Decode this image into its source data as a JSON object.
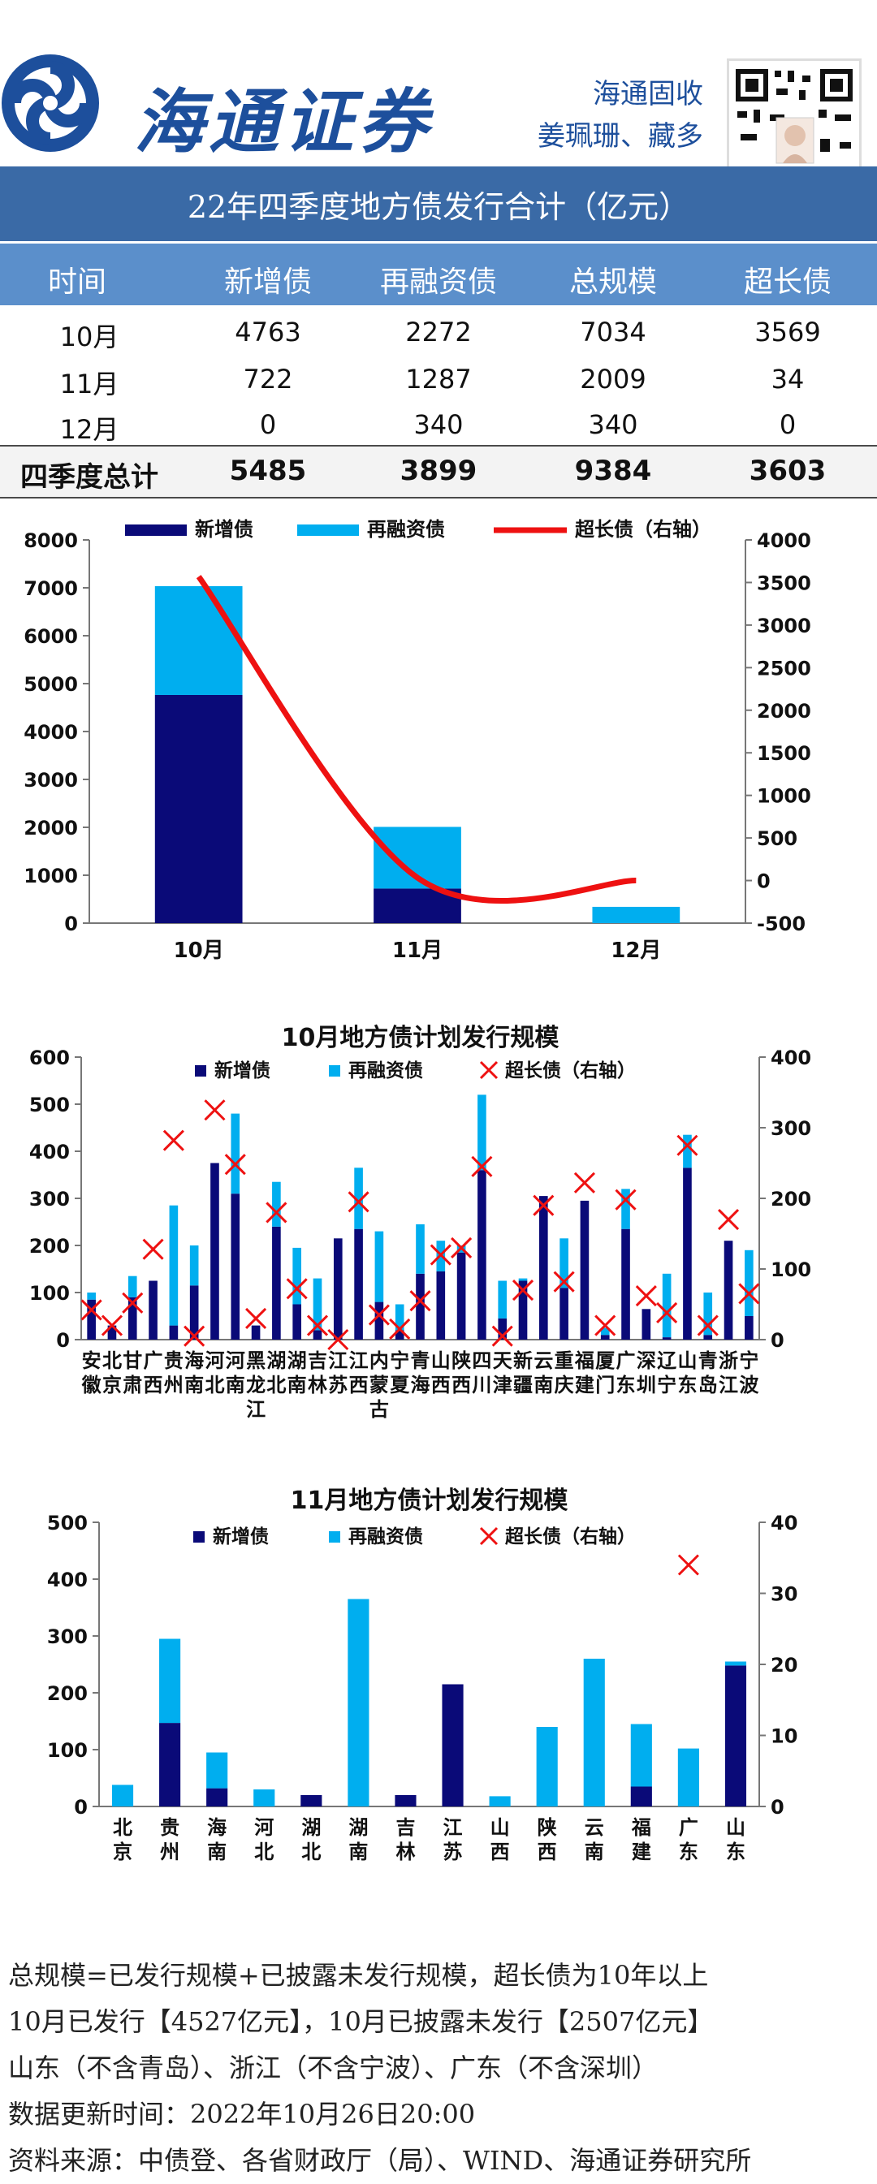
{
  "header": {
    "brand": "海通证券",
    "author_line1": "海通固收",
    "author_line2": "姜珮珊、藏多"
  },
  "summary_table": {
    "title": "22年四季度地方债发行合计（亿元）",
    "columns": [
      "时间",
      "新增债",
      "再融资债",
      "总规模",
      "超长债"
    ],
    "rows": [
      [
        "10月",
        "4763",
        "2272",
        "7034",
        "3569"
      ],
      [
        "11月",
        "722",
        "1287",
        "2009",
        "34"
      ],
      [
        "12月",
        "0",
        "340",
        "340",
        "0"
      ]
    ],
    "total": [
      "四季度总计",
      "5485",
      "3899",
      "9384",
      "3603"
    ]
  },
  "colors": {
    "new_debt": "#0a0a78",
    "refi_debt": "#00aeef",
    "ultra_long": "#ee1111",
    "title_bar": "#3a6aa6",
    "header_row": "#5b8fcb"
  },
  "chart_data": [
    {
      "type": "bar",
      "stacked": true,
      "categories": [
        "10月",
        "11月",
        "12月"
      ],
      "series": [
        {
          "name": "新增债",
          "values": [
            4763,
            722,
            0
          ]
        },
        {
          "name": "再融资债",
          "values": [
            2272,
            1287,
            340
          ]
        },
        {
          "name": "超长债（右轴）",
          "type": "line",
          "axis": "right",
          "values": [
            3569,
            34,
            0
          ]
        }
      ],
      "ylim": [
        0,
        8000
      ],
      "yticks": [
        0,
        1000,
        2000,
        3000,
        4000,
        5000,
        6000,
        7000,
        8000
      ],
      "y2lim": [
        -500,
        4000
      ],
      "y2ticks": [
        -500,
        0,
        500,
        1000,
        1500,
        2000,
        2500,
        3000,
        3500,
        4000
      ],
      "legend": "top"
    },
    {
      "type": "bar",
      "stacked": true,
      "title": "10月地方债计划发行规模",
      "categories": [
        "安徽",
        "北京",
        "甘肃",
        "广西",
        "贵州",
        "海南",
        "河北",
        "河南",
        "黑龙江",
        "湖北",
        "湖南",
        "吉林",
        "江苏",
        "江西",
        "内蒙古",
        "宁夏",
        "青海",
        "山西",
        "陕西",
        "四川",
        "天津",
        "新疆",
        "云南",
        "重庆",
        "福建",
        "厦门",
        "广东",
        "深圳",
        "辽宁",
        "山东",
        "青岛",
        "浙江",
        "宁波"
      ],
      "tick_labels": [
        "安徽",
        "北京",
        "甘肃",
        "广西",
        "贵州",
        "海南",
        "河北",
        "河南",
        "黑龙江",
        "湖北",
        "湖南",
        "吉林",
        "江苏",
        "江西",
        "内蒙古",
        "宁夏",
        "青海",
        "山西",
        "陕西",
        "四川",
        "天津",
        "新疆",
        "云南",
        "重庆",
        "福建",
        "厦门",
        "广东",
        "深圳",
        "辽宁",
        "山东",
        "青岛",
        "浙江",
        "宁波"
      ],
      "series": [
        {
          "name": "新增债",
          "values": [
            85,
            30,
            90,
            125,
            30,
            115,
            375,
            310,
            30,
            240,
            75,
            20,
            215,
            235,
            80,
            20,
            140,
            145,
            185,
            360,
            45,
            125,
            305,
            110,
            295,
            10,
            235,
            65,
            5,
            365,
            10,
            210,
            50
          ]
        },
        {
          "name": "再融资债",
          "values": [
            15,
            0,
            45,
            0,
            255,
            85,
            0,
            170,
            0,
            95,
            120,
            110,
            0,
            130,
            150,
            55,
            105,
            65,
            15,
            160,
            80,
            5,
            0,
            105,
            0,
            15,
            85,
            0,
            135,
            70,
            90,
            0,
            140
          ]
        },
        {
          "name": "超长债（右轴）",
          "type": "scatter",
          "axis": "right",
          "values": [
            42,
            20,
            52,
            128,
            282,
            5,
            325,
            248,
            30,
            180,
            72,
            20,
            0,
            195,
            35,
            15,
            55,
            120,
            130,
            245,
            5,
            70,
            190,
            82,
            222,
            20,
            198,
            62,
            38,
            275,
            20,
            170,
            65
          ]
        }
      ],
      "ylim": [
        0,
        600
      ],
      "yticks": [
        0,
        100,
        200,
        300,
        400,
        500,
        600
      ],
      "y2lim": [
        0,
        400
      ],
      "y2ticks": [
        0,
        100,
        200,
        300,
        400
      ],
      "legend": "top"
    },
    {
      "type": "bar",
      "stacked": true,
      "title": "11月地方债计划发行规模",
      "categories": [
        "北京",
        "贵州",
        "海南",
        "河北",
        "湖北",
        "湖南",
        "吉林",
        "江苏",
        "山西",
        "陕西",
        "云南",
        "福建",
        "广东",
        "山东"
      ],
      "series": [
        {
          "name": "新增债",
          "values": [
            0,
            147,
            32,
            0,
            20,
            0,
            20,
            215,
            0,
            0,
            0,
            35,
            0,
            248
          ]
        },
        {
          "name": "再融资债",
          "values": [
            38,
            148,
            63,
            30,
            0,
            365,
            0,
            0,
            18,
            140,
            260,
            110,
            102,
            7
          ]
        },
        {
          "name": "超长债（右轴）",
          "type": "scatter",
          "axis": "right",
          "values": [
            null,
            null,
            null,
            null,
            null,
            null,
            null,
            null,
            null,
            null,
            null,
            null,
            34,
            null
          ]
        }
      ],
      "ylim": [
        0,
        500
      ],
      "yticks": [
        0,
        100,
        200,
        300,
        400,
        500
      ],
      "y2lim": [
        0,
        40
      ],
      "y2ticks": [
        0,
        10,
        20,
        30,
        40
      ],
      "legend": "top"
    }
  ],
  "footnotes": [
    "总规模=已发行规模+已披露未发行规模，超长债为10年以上",
    "10月已发行【4527亿元】，10月已披露未发行【2507亿元】",
    "山东（不含青岛）、浙江（不含宁波）、广东（不含深圳）",
    "数据更新时间：2022年10月26日20:00",
    "资料来源：中债登、各省财政厅（局）、WIND、海通证券研究所"
  ]
}
